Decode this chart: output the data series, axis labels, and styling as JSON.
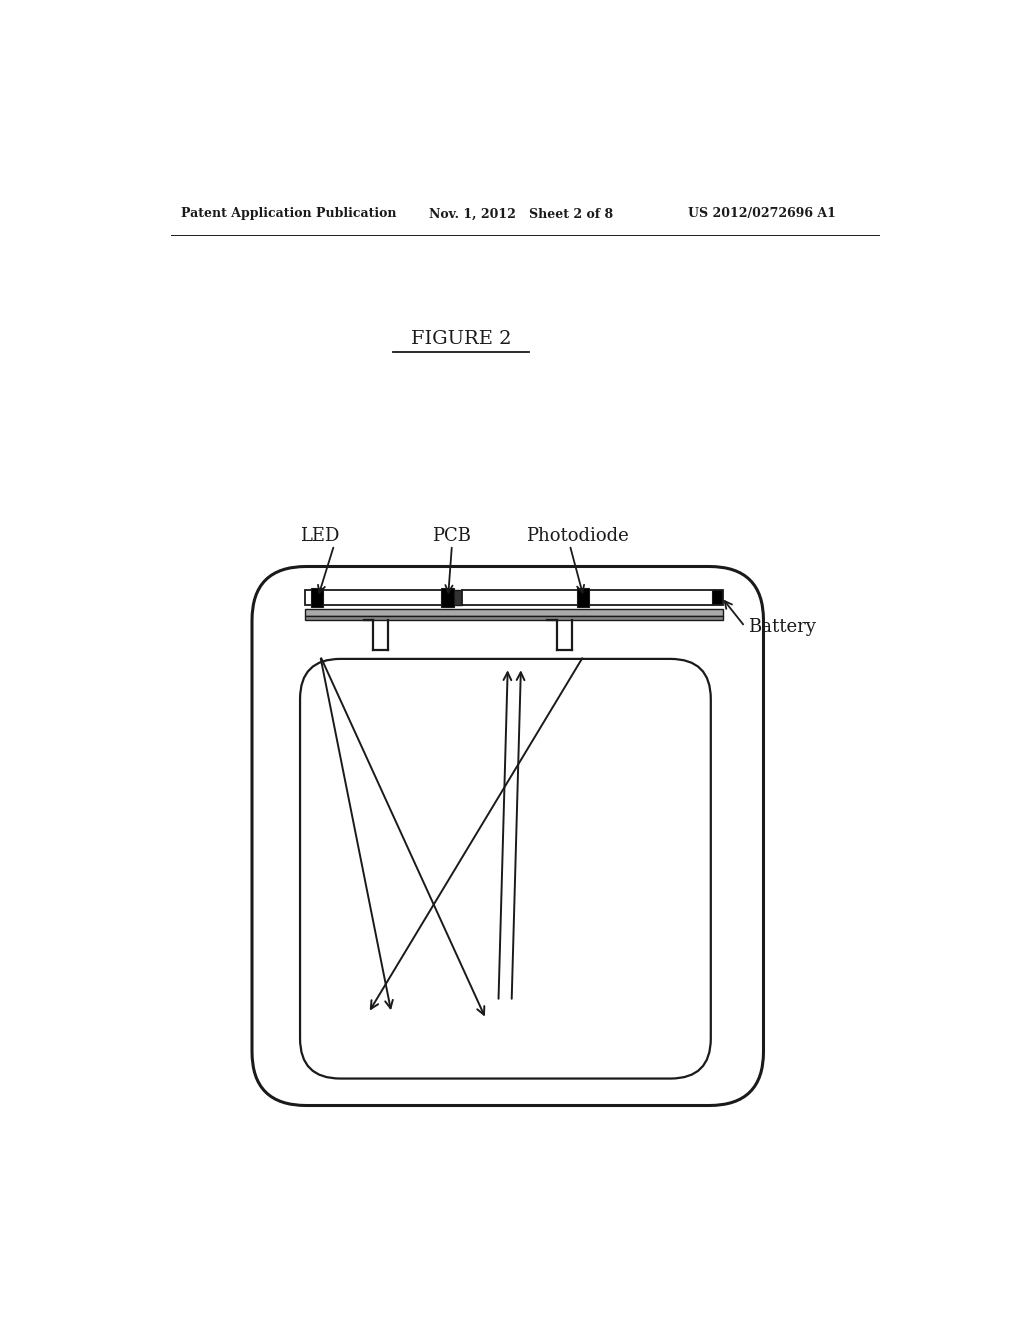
{
  "header_left": "Patent Application Publication",
  "header_mid": "Nov. 1, 2012   Sheet 2 of 8",
  "header_right": "US 2012/0272696 A1",
  "title": "FIGURE 2",
  "label_LED": "LED",
  "label_PCB": "PCB",
  "label_Photodiode": "Photodiode",
  "label_Battery": "Battery",
  "bg_color": "#ffffff",
  "lc": "#1a1a1a",
  "fig_width": 10.24,
  "fig_height": 13.2,
  "dpi": 100
}
